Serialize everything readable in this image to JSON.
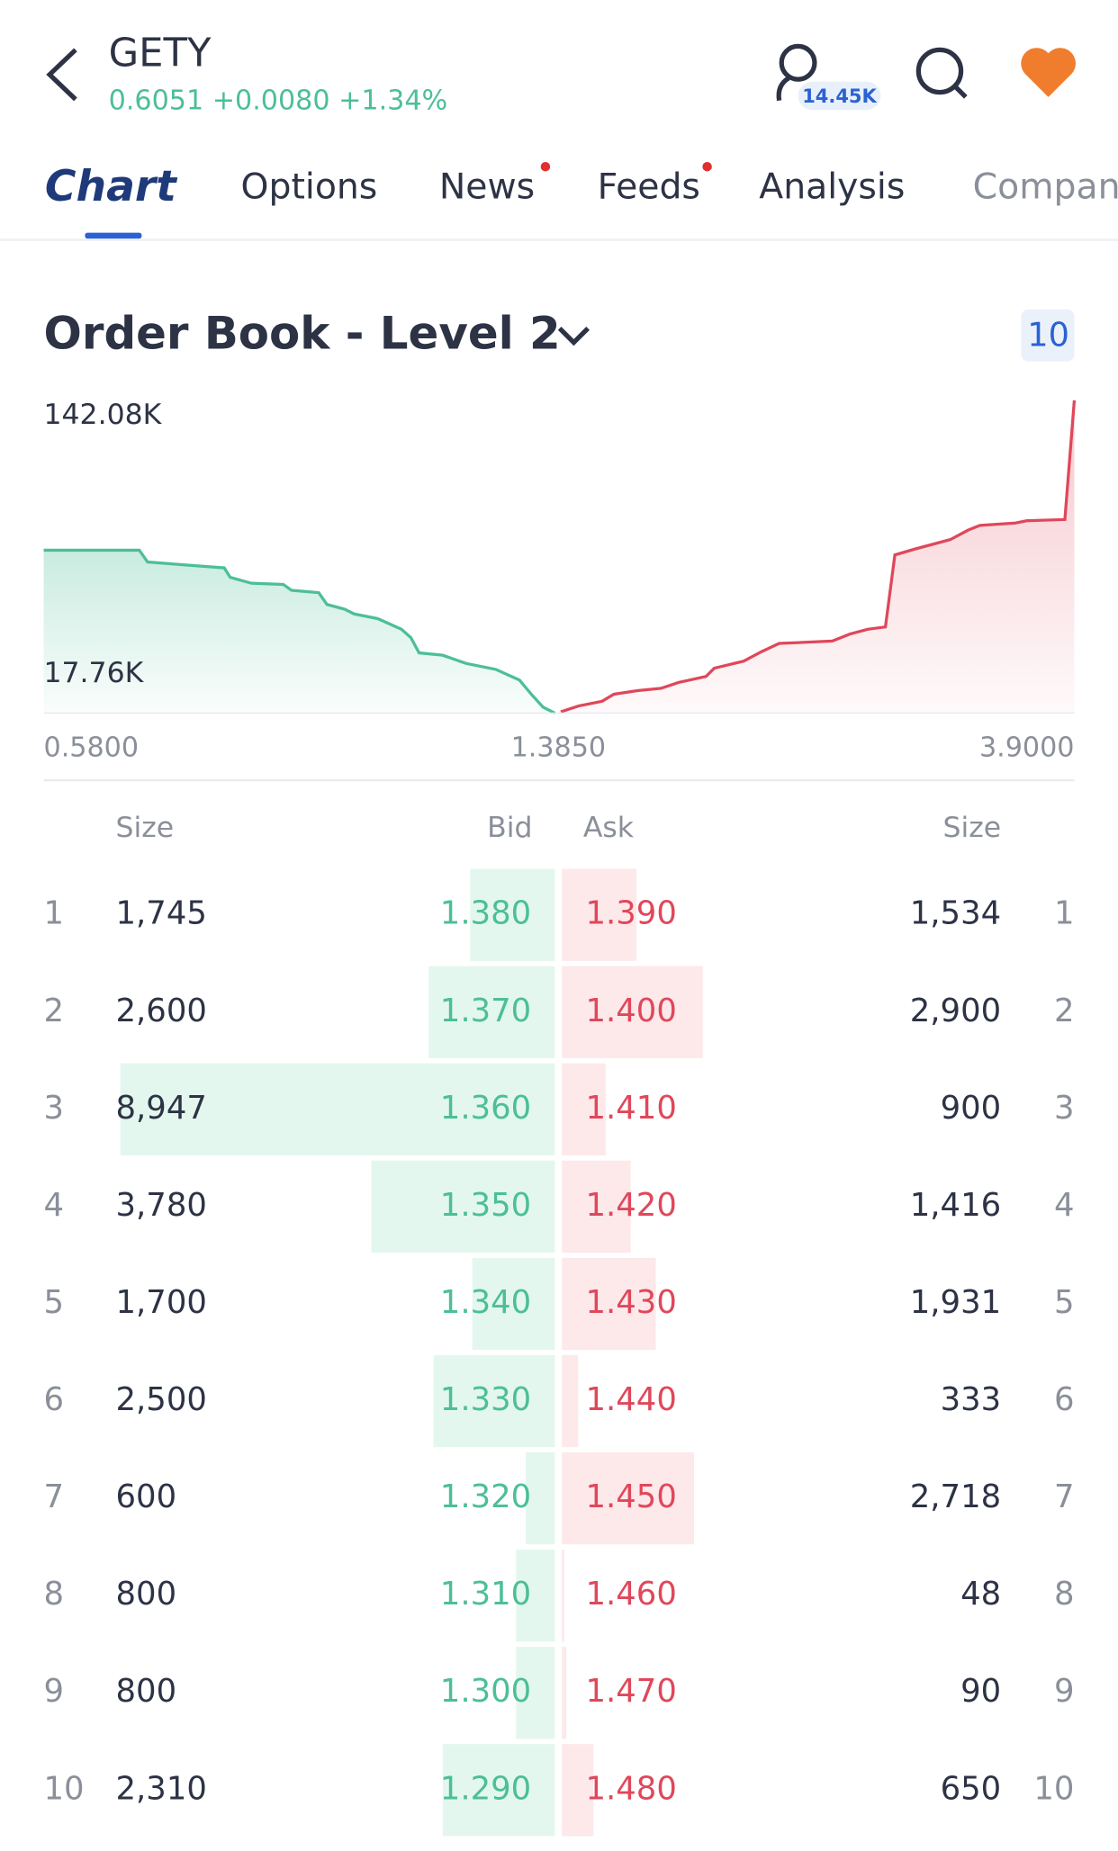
{
  "header": {
    "symbol": "GETY",
    "quote": "0.6051 +0.0080 +1.34%",
    "followers": "14.45K"
  },
  "tabs": [
    "Chart",
    "Options",
    "News",
    "Feeds",
    "Analysis",
    "Company"
  ],
  "order_book": {
    "title": "Order Book - Level 2",
    "levels": "10",
    "depth_chart": {
      "y_labels": [
        "142.08K",
        "17.76K"
      ],
      "x_labels": [
        "0.5800",
        "1.3850",
        "3.9000"
      ]
    },
    "columns": [
      "Size",
      "Bid",
      "Ask",
      "Size"
    ],
    "rows": [
      {
        "rank": "1",
        "bid_size": {
          "value": 1745,
          "label": "1,745"
        },
        "bid": "1.380",
        "ask": "1.390",
        "ask_size": {
          "value": 1534,
          "label": "1,534"
        }
      },
      {
        "rank": "2",
        "bid_size": {
          "value": 2600,
          "label": "2,600"
        },
        "bid": "1.370",
        "ask": "1.400",
        "ask_size": {
          "value": 2900,
          "label": "2,900"
        }
      },
      {
        "rank": "3",
        "bid_size": {
          "value": 8947,
          "label": "8,947"
        },
        "bid": "1.360",
        "ask": "1.410",
        "ask_size": {
          "value": 900,
          "label": "900"
        }
      },
      {
        "rank": "4",
        "bid_size": {
          "value": 3780,
          "label": "3,780"
        },
        "bid": "1.350",
        "ask": "1.420",
        "ask_size": {
          "value": 1416,
          "label": "1,416"
        }
      },
      {
        "rank": "5",
        "bid_size": {
          "value": 1700,
          "label": "1,700"
        },
        "bid": "1.340",
        "ask": "1.430",
        "ask_size": {
          "value": 1931,
          "label": "1,931"
        }
      },
      {
        "rank": "6",
        "bid_size": {
          "value": 2500,
          "label": "2,500"
        },
        "bid": "1.330",
        "ask": "1.440",
        "ask_size": {
          "value": 333,
          "label": "333"
        }
      },
      {
        "rank": "7",
        "bid_size": {
          "value": 600,
          "label": "600"
        },
        "bid": "1.320",
        "ask": "1.450",
        "ask_size": {
          "value": 2718,
          "label": "2,718"
        }
      },
      {
        "rank": "8",
        "bid_size": {
          "value": 800,
          "label": "800"
        },
        "bid": "1.310",
        "ask": "1.460",
        "ask_size": {
          "value": 48,
          "label": "48"
        }
      },
      {
        "rank": "9",
        "bid_size": {
          "value": 800,
          "label": "800"
        },
        "bid": "1.300",
        "ask": "1.470",
        "ask_size": {
          "value": 90,
          "label": "90"
        }
      },
      {
        "rank": "10",
        "bid_size": {
          "value": 2310,
          "label": "2,310"
        },
        "bid": "1.290",
        "ask": "1.480",
        "ask_size": {
          "value": 650,
          "label": "650"
        }
      }
    ]
  }
}
